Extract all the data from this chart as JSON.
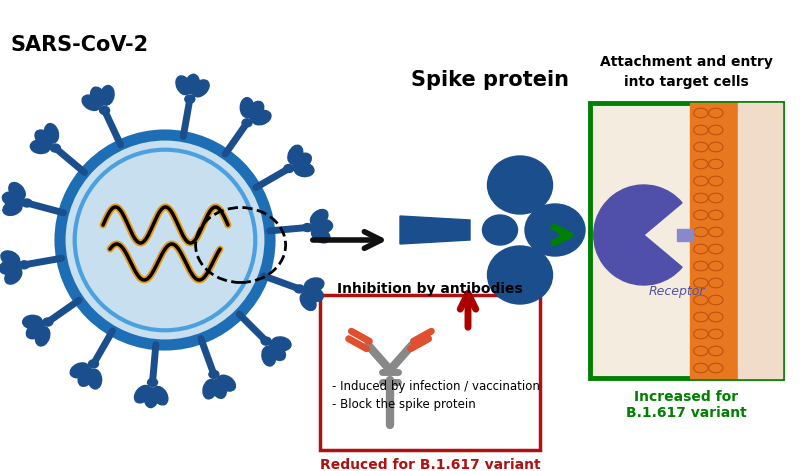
{
  "title": "SARS-CoV-2",
  "bg_color": "#ffffff",
  "fig_width": 8.0,
  "fig_height": 4.71,
  "virus_body_color": "#c8dff0",
  "virus_ring_color": "#1e6eb5",
  "virus_ring2_color": "#4aa0e0",
  "spike_color": "#1a4e8c",
  "rna_color": "#e8980a",
  "spike_protein_label": "Spike protein",
  "inhibition_label": "Inhibition by antibodies",
  "antibody_box_color": "#b01010",
  "antibody_text1": "- Induced by infection / vaccination",
  "antibody_text2": "- Block the spike protein",
  "antibody_reduced_label": "Reduced for B.1.617 variant",
  "cell_box_color": "#008000",
  "cell_label_top1": "Attachment and entry",
  "cell_label_top2": "into target cells",
  "cell_increased_label": "Increased for\nB.1.617 variant",
  "receptor_label": "Receptor",
  "receptor_color": "#5050aa",
  "membrane_bead_color": "#e87820",
  "membrane_bg_color": "#f0dcc8",
  "cell_bg_color": "#f5ece0",
  "dark_arrow_color": "#111111",
  "green_arrow_color": "#008000",
  "red_arrow_color": "#aa0000",
  "antibody_gray": "#888888",
  "antibody_red": "#e05030"
}
